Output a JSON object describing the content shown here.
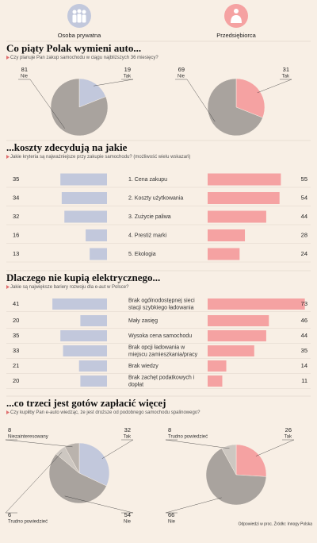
{
  "header": {
    "left": "Osoba prywatna",
    "right": "Przedsiębiorca"
  },
  "colors": {
    "left": "#c2c8dc",
    "right": "#f5a2a2"
  },
  "sections": [
    {
      "type": "pie",
      "title": "Co piąty Polak wymieni auto...",
      "question": "Czy planuje Pan zakup samochodu w ciągu najbliższych 36 miesięcy?",
      "left": {
        "slices": [
          {
            "label": "Tak",
            "value": 19,
            "color": "#c2c8dc"
          },
          {
            "label": "Nie",
            "value": 81,
            "color": "#a9a39e"
          }
        ]
      },
      "right": {
        "slices": [
          {
            "label": "Tak",
            "value": 31,
            "color": "#f5a2a2"
          },
          {
            "label": "Nie",
            "value": 69,
            "color": "#a9a39e"
          }
        ]
      }
    },
    {
      "type": "bar",
      "title": "...koszty zdecydują na jakie",
      "question": "Jakie kryteria są najważniejsze przy zakupie samochodu? (możliwość wielu wskazań)",
      "categories": [
        "1. Cena zakupu",
        "2. Koszty użytkowania",
        "3. Zużycie paliwa",
        "4. Prestiż marki",
        "5. Ekologia"
      ],
      "left": [
        35,
        34,
        32,
        16,
        13
      ],
      "right": [
        55,
        54,
        44,
        28,
        24
      ]
    },
    {
      "type": "bar",
      "title": "Dlaczego nie kupią elektrycznego...",
      "question": "Jakie są największe bariery rozwoju dla e-aut w Polsce?",
      "categories": [
        "Brak ogólnodostępnej sieci stacji szybkiego ładowania",
        "Mały zasięg",
        "Wysoka cena samochodu",
        "Brak opcji ładowania w miejscu zamieszkania/pracy",
        "Brak wiedzy",
        "Brak zachęt podatkowych i dopłat"
      ],
      "left": [
        41,
        20,
        35,
        33,
        21,
        20
      ],
      "right": [
        73,
        46,
        44,
        35,
        14,
        11
      ]
    },
    {
      "type": "pie",
      "title": "...co trzeci jest gotów zapłacić więcej",
      "question": "Czy kupiłby Pan e-auto wiedząc, że jest droższe od podobnego samochodu spalinowego?",
      "left": {
        "slices": [
          {
            "label": "Tak",
            "value": 32,
            "color": "#c2c8dc"
          },
          {
            "label": "Nie",
            "value": 54,
            "color": "#a9a39e"
          },
          {
            "label": "Trudno powiedzieć",
            "value": 6,
            "color": "#cdc7c1"
          },
          {
            "label": "Niezainteresowany",
            "value": 8,
            "color": "#bab3ad"
          }
        ]
      },
      "right": {
        "slices": [
          {
            "label": "Tak",
            "value": 26,
            "color": "#f5a2a2"
          },
          {
            "label": "Nie",
            "value": 66,
            "color": "#a9a39e"
          },
          {
            "label": "Trudno powiedzieć",
            "value": 8,
            "color": "#cdc7c1"
          }
        ]
      }
    }
  ],
  "footer": "Odpowiedzi w proc. Źródło: Innogy Polska"
}
